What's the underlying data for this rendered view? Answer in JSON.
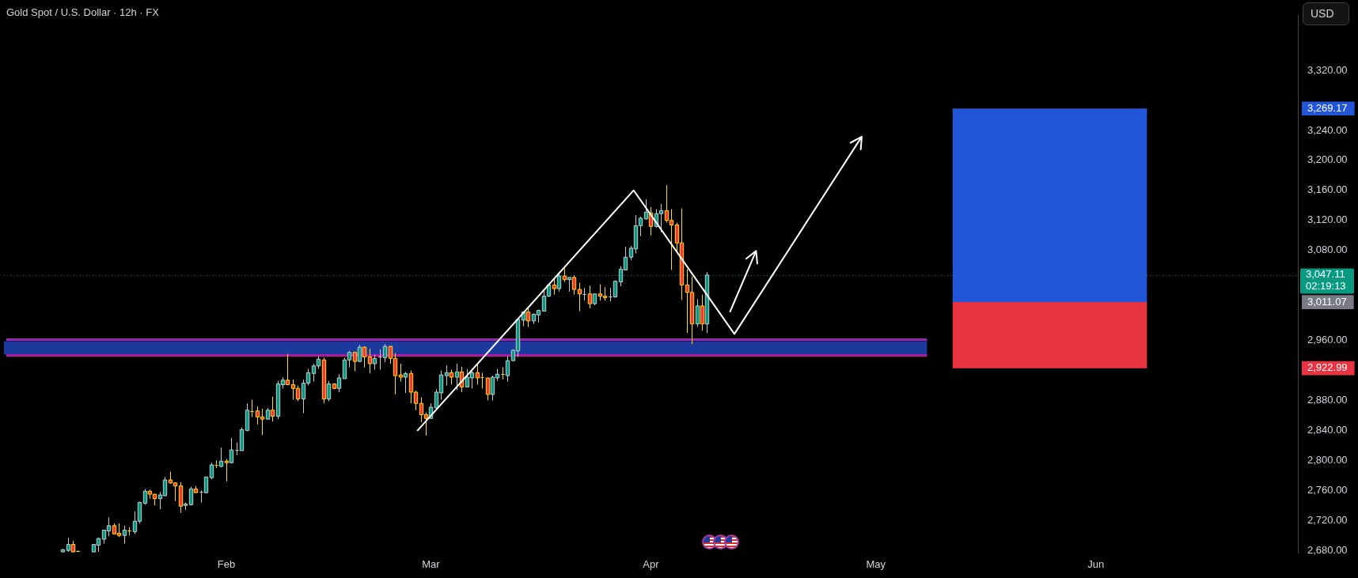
{
  "chart_data": {
    "type": "candlestick",
    "title": "Gold Spot / U.S. Dollar · 12h · FX",
    "ylabel": "USD",
    "categories": [
      null,
      null,
      null,
      null,
      null,
      null,
      null,
      null,
      null,
      null,
      null,
      null,
      null,
      null,
      null,
      null,
      null,
      null,
      null,
      null,
      null,
      null,
      null,
      null,
      null,
      null,
      null,
      null,
      null,
      null,
      null,
      null,
      null,
      null,
      null,
      null,
      null,
      null,
      null,
      null,
      null,
      null,
      null,
      "Feb",
      null,
      null,
      null,
      null,
      null,
      null,
      null,
      null,
      null,
      null,
      null,
      null,
      null,
      null,
      null,
      null,
      null,
      null,
      null,
      null,
      null,
      null,
      null,
      null,
      null,
      null,
      null,
      null,
      null,
      null,
      null,
      null,
      null,
      null,
      null,
      null,
      null,
      null,
      null,
      "Mar",
      null,
      null,
      null,
      null,
      null,
      null,
      null,
      null,
      null,
      null,
      null,
      null,
      null,
      null,
      null,
      null,
      null,
      null,
      null,
      null,
      null,
      null,
      null,
      null,
      null,
      null,
      null,
      null,
      null,
      null,
      null,
      null,
      null,
      null,
      null,
      null,
      null,
      null,
      null,
      null,
      null,
      null,
      "Apr",
      null,
      null,
      null,
      null,
      null,
      null,
      null,
      null,
      null,
      null,
      null,
      null,
      null,
      null,
      null,
      null,
      null,
      null,
      null,
      null,
      null,
      null,
      null,
      null,
      null,
      null,
      null,
      null,
      null,
      null,
      null,
      null,
      null,
      null,
      null,
      null,
      null,
      null,
      null,
      null,
      null,
      null,
      null,
      "May",
      null,
      null,
      null,
      null,
      null,
      null,
      null,
      null,
      null,
      null,
      null,
      null,
      null,
      null,
      null,
      null,
      null,
      null,
      null,
      null,
      null,
      null,
      null,
      null,
      null,
      null,
      null,
      null,
      null,
      null,
      null,
      null,
      null,
      null,
      null,
      null,
      null,
      null,
      null,
      null,
      null,
      null,
      "Jun",
      null,
      null,
      null,
      null,
      null,
      null,
      null,
      null,
      null,
      null,
      null,
      null,
      null,
      null,
      null,
      null,
      null,
      null,
      null,
      null,
      null,
      null,
      null,
      null,
      null,
      null,
      null,
      null,
      null,
      null,
      null,
      null,
      null,
      null,
      null,
      null,
      null,
      null,
      null
    ],
    "ylim": [
      2677,
      3393
    ],
    "yticks": [
      {
        "value": 2680,
        "label": "2,680.00"
      },
      {
        "value": 2720,
        "label": "2,720.00"
      },
      {
        "value": 2760,
        "label": "2,760.00"
      },
      {
        "value": 2800,
        "label": "2,800.00"
      },
      {
        "value": 2840,
        "label": "2,840.00"
      },
      {
        "value": 2880,
        "label": "2,880.00"
      },
      {
        "value": 2922.99,
        "label": "2,922.99"
      },
      {
        "value": 2960,
        "label": "2,960.00"
      },
      {
        "value": 3011.07,
        "label": "3,011.07"
      },
      {
        "value": 3080,
        "label": "3,080.00"
      },
      {
        "value": 3120,
        "label": "3,120.00"
      },
      {
        "value": 3160,
        "label": "3,160.00"
      },
      {
        "value": 3200,
        "label": "3,200.00"
      },
      {
        "value": 3240,
        "label": "3,240.00"
      },
      {
        "value": 3269.17,
        "label": "3,269.17"
      },
      {
        "value": 3320,
        "label": "3,320.00"
      }
    ],
    "grid": false,
    "bands": [
      {
        "axis": "y",
        "from": 2941,
        "to": 2959,
        "color": "#1c3a9c"
      },
      {
        "axis": "y",
        "from": 3011.07,
        "to": 3269.17,
        "color": "#2255d8"
      },
      {
        "axis": "y",
        "from": 2922.99,
        "to": 3011.07,
        "color": "#e83442"
      }
    ],
    "series": [
      {
        "type": "line",
        "color": "#9c27b0",
        "values": [
          2961,
          2961,
          2961,
          2961,
          2961,
          2961,
          2961,
          2961,
          2961,
          2961,
          2961,
          2961,
          2961,
          2961,
          2961,
          2961,
          2961,
          2961,
          2961,
          2961,
          2961,
          2961,
          2961,
          2961,
          2961,
          2961,
          2961,
          2961,
          2961,
          2961,
          2961,
          2961,
          2961,
          2961,
          2961,
          2961,
          2961,
          2961,
          2961,
          2961,
          2961,
          2961,
          2961,
          2961,
          2961,
          2961,
          2961,
          2961,
          2961,
          2961,
          2961,
          2961,
          2961,
          2961,
          2961,
          2961,
          2961,
          2961,
          2961,
          2961,
          2961,
          2961,
          2961,
          2961,
          2961,
          2961,
          2961,
          2961,
          2961,
          2961,
          2961,
          2961,
          2961,
          2961,
          2961,
          2961,
          2961,
          2961,
          2961,
          2961,
          2961,
          2961,
          2961,
          2961,
          2961,
          2961,
          2961,
          2961,
          2961,
          2961,
          2961,
          2961,
          2961,
          2961,
          2961,
          2961,
          2961,
          2961,
          2961,
          2961,
          2961,
          2961,
          2961,
          2961,
          2961,
          2961,
          2961,
          2961,
          2961,
          2961,
          2961,
          2961,
          2961,
          2961,
          2961,
          2961,
          2961,
          2961,
          2961,
          2961,
          2961,
          2961,
          2961,
          2961,
          2961,
          2961,
          2961,
          2961,
          2961,
          2961,
          2961,
          2961,
          2961,
          2961,
          2961,
          2961,
          2961,
          2961,
          2961,
          2961,
          2961,
          2961,
          2961,
          2961,
          2961,
          2961,
          2961,
          2961,
          2961,
          2961,
          2961,
          2961,
          2961,
          2961,
          2961,
          2961,
          2961,
          2961,
          2961,
          2961,
          2961,
          2961,
          2961,
          2961,
          2961,
          2961,
          2961,
          2961,
          2961,
          2961,
          2961,
          2961,
          2961,
          2961,
          2961,
          2961,
          2961,
          2961,
          2961,
          2961,
          2961,
          null,
          null,
          null,
          null,
          null,
          null,
          null,
          null,
          null,
          null,
          null,
          null,
          null,
          null,
          null,
          null,
          null,
          null,
          null,
          null,
          null,
          null,
          null,
          null,
          null,
          null,
          null,
          null,
          null,
          null,
          null,
          null,
          null,
          null,
          null,
          null,
          null,
          null,
          null,
          null,
          null,
          null,
          null,
          null,
          null,
          null,
          null,
          null,
          null,
          null,
          null,
          null,
          null,
          null,
          null,
          null,
          null,
          null,
          null,
          null,
          null,
          null,
          null,
          null,
          null,
          null,
          null,
          null,
          null,
          null,
          null,
          null
        ]
      },
      {
        "type": "line",
        "color": "#b5179e",
        "values": [
          2940,
          2940,
          2940,
          2940,
          2940,
          2940,
          2940,
          2940,
          2940,
          2940,
          2940,
          2940,
          2940,
          2940,
          2940,
          2940,
          2940,
          2940,
          2940,
          2940,
          2940,
          2940,
          2940,
          2940,
          2940,
          2940,
          2940,
          2940,
          2940,
          2940,
          2940,
          2940,
          2940,
          2940,
          2940,
          2940,
          2940,
          2940,
          2940,
          2940,
          2940,
          2940,
          2940,
          2940,
          2940,
          2940,
          2940,
          2940,
          2940,
          2940,
          2940,
          2940,
          2940,
          2940,
          2940,
          2940,
          2940,
          2940,
          2940,
          2940,
          2940,
          2940,
          2940,
          2940,
          2940,
          2940,
          2940,
          2940,
          2940,
          2940,
          2940,
          2940,
          2940,
          2940,
          2940,
          2940,
          2940,
          2940,
          2940,
          2940,
          2940,
          2940,
          2940,
          2940,
          2940,
          2940,
          2940,
          2940,
          2940,
          2940,
          2940,
          2940,
          2940,
          2940,
          2940,
          2940,
          2940,
          2940,
          2940,
          2940,
          2940,
          2940,
          2940,
          2940,
          2940,
          2940,
          2940,
          2940,
          2940,
          2940,
          2940,
          2940,
          2940,
          2940,
          2940,
          2940,
          2940,
          2940,
          2940,
          2940,
          2940,
          2940,
          2940,
          2940,
          2940,
          2940,
          2940,
          2940,
          2940,
          2940,
          2940,
          2940,
          2940,
          2940,
          2940,
          2940,
          2940,
          2940,
          2940,
          2940,
          2940,
          2940,
          2940,
          2940,
          2940,
          2940,
          2940,
          2940,
          2940,
          2940,
          2940,
          2940,
          2940,
          2940,
          2940,
          2940,
          2940,
          2940,
          2940,
          2940,
          2940,
          2940,
          2940,
          2940,
          2940,
          2940,
          2940,
          2940,
          2940,
          2940,
          2940,
          2940,
          2940,
          2940,
          2940,
          2940,
          2940,
          2940,
          2940,
          2940,
          2940,
          null,
          null,
          null,
          null,
          null,
          null,
          null,
          null,
          null,
          null,
          null,
          null,
          null,
          null,
          null,
          null,
          null,
          null,
          null,
          null,
          null,
          null,
          null,
          null,
          null,
          null,
          null,
          null,
          null,
          null,
          null,
          null,
          null,
          null,
          null,
          null,
          null,
          null,
          null,
          null,
          null,
          null,
          null,
          null,
          null,
          null,
          null,
          null,
          null,
          null,
          null,
          null,
          null,
          null,
          null,
          null,
          null,
          null,
          null,
          null,
          null,
          null,
          null,
          null,
          null,
          null,
          null,
          null,
          null,
          null,
          null,
          null
        ]
      },
      {
        "ohlc": [
          null,
          null,
          null,
          null,
          null,
          null,
          null,
          null,
          null,
          null,
          null,
          [
            2678,
            2682,
            2678,
            2681
          ],
          [
            2680,
            2697,
            2678,
            2688
          ],
          [
            2688,
            2693,
            2678,
            2678
          ],
          [
            2679,
            2680,
            2678,
            2678
          ],
          null,
          null,
          [
            2678,
            2688,
            2678,
            2688
          ],
          [
            2687,
            2697,
            2678,
            2696
          ],
          [
            2695,
            2707,
            2689,
            2707
          ],
          [
            2706,
            2724,
            2699,
            2713
          ],
          [
            2713,
            2716,
            2702,
            2702
          ],
          [
            2703,
            2716,
            2698,
            2700
          ],
          [
            2700,
            2713,
            2689,
            2707
          ],
          [
            2707,
            2711,
            2700,
            2706
          ],
          [
            2705,
            2732,
            2702,
            2719
          ],
          [
            2719,
            2745,
            2716,
            2744
          ],
          [
            2743,
            2762,
            2741,
            2759
          ],
          [
            2759,
            2761,
            2749,
            2755
          ],
          [
            2755,
            2755,
            2740,
            2749
          ],
          [
            2749,
            2758,
            2735,
            2754
          ],
          [
            2753,
            2778,
            2752,
            2774
          ],
          [
            2774,
            2785,
            2769,
            2770
          ],
          [
            2770,
            2771,
            2746,
            2766
          ],
          [
            2766,
            2771,
            2730,
            2739
          ],
          [
            2740,
            2744,
            2734,
            2742
          ],
          [
            2741,
            2765,
            2740,
            2762
          ],
          [
            2762,
            2766,
            2757,
            2757
          ],
          [
            2757,
            2760,
            2744,
            2758
          ],
          [
            2757,
            2778,
            2756,
            2778
          ],
          [
            2777,
            2797,
            2775,
            2794
          ],
          [
            2794,
            2800,
            2790,
            2793
          ],
          [
            2792,
            2817,
            2791,
            2799
          ],
          [
            2799,
            2802,
            2772,
            2797
          ],
          [
            2797,
            2830,
            2796,
            2814
          ],
          [
            2814,
            2824,
            2807,
            2814
          ],
          [
            2813,
            2844,
            2813,
            2841
          ],
          [
            2840,
            2876,
            2839,
            2867
          ],
          [
            2866,
            2881,
            2858,
            2865
          ],
          [
            2866,
            2872,
            2848,
            2858
          ],
          [
            2858,
            2869,
            2834,
            2855
          ],
          [
            2855,
            2870,
            2855,
            2867
          ],
          [
            2867,
            2885,
            2852,
            2859
          ],
          [
            2859,
            2906,
            2855,
            2902
          ],
          [
            2901,
            2911,
            2896,
            2907
          ],
          [
            2907,
            2942,
            2901,
            2901
          ],
          [
            2901,
            2908,
            2881,
            2896
          ],
          [
            2896,
            2900,
            2879,
            2882
          ],
          [
            2882,
            2908,
            2863,
            2903
          ],
          [
            2903,
            2922,
            2900,
            2917
          ],
          [
            2916,
            2929,
            2905,
            2926
          ],
          [
            2926,
            2939,
            2922,
            2935
          ],
          [
            2934,
            2937,
            2876,
            2882
          ],
          [
            2882,
            2906,
            2879,
            2902
          ],
          [
            2902,
            2903,
            2895,
            2896
          ],
          [
            2896,
            2915,
            2891,
            2910
          ],
          [
            2909,
            2937,
            2909,
            2934
          ],
          [
            2934,
            2946,
            2924,
            2944
          ],
          [
            2944,
            2945,
            2919,
            2932
          ],
          [
            2932,
            2954,
            2931,
            2951
          ],
          [
            2951,
            2952,
            2924,
            2938
          ],
          [
            2938,
            2949,
            2916,
            2929
          ],
          [
            2929,
            2941,
            2921,
            2936
          ],
          [
            2937,
            2948,
            2921,
            2938
          ],
          [
            2937,
            2955,
            2931,
            2952
          ],
          [
            2952,
            2953,
            2929,
            2936
          ],
          [
            2936,
            2943,
            2888,
            2913
          ],
          [
            2914,
            2929,
            2905,
            2911
          ],
          [
            2911,
            2918,
            2890,
            2916
          ],
          [
            2916,
            2920,
            2876,
            2891
          ],
          [
            2891,
            2893,
            2867,
            2876
          ],
          [
            2876,
            2884,
            2851,
            2861
          ],
          [
            2861,
            2864,
            2833,
            2856
          ],
          [
            2856,
            2876,
            2856,
            2871
          ],
          [
            2870,
            2895,
            2868,
            2891
          ],
          [
            2890,
            2920,
            2881,
            2914
          ],
          [
            2913,
            2927,
            2900,
            2917
          ],
          [
            2917,
            2921,
            2901,
            2911
          ],
          [
            2911,
            2929,
            2894,
            2918
          ],
          [
            2918,
            2925,
            2891,
            2898
          ],
          [
            2898,
            2922,
            2898,
            2911
          ],
          [
            2910,
            2922,
            2896,
            2917
          ],
          [
            2917,
            2929,
            2901,
            2910
          ],
          [
            2911,
            2917,
            2896,
            2910
          ],
          [
            2910,
            2910,
            2880,
            2888
          ],
          [
            2888,
            2913,
            2880,
            2911
          ],
          [
            2910,
            2922,
            2906,
            2915
          ],
          [
            2915,
            2924,
            2908,
            2914
          ],
          [
            2913,
            2939,
            2905,
            2933
          ],
          [
            2933,
            2948,
            2933,
            2947
          ],
          [
            2946,
            2989,
            2938,
            2988
          ],
          [
            2987,
            2999,
            2979,
            2998
          ],
          [
            2998,
            3004,
            2978,
            2986
          ],
          [
            2986,
            2996,
            2982,
            2995
          ],
          [
            2994,
            3001,
            2984,
            3000
          ],
          [
            2999,
            3028,
            2999,
            3019
          ],
          [
            3019,
            3036,
            3018,
            3034
          ],
          [
            3034,
            3044,
            3021,
            3029
          ],
          [
            3029,
            3051,
            3025,
            3046
          ],
          [
            3046,
            3056,
            3038,
            3041
          ],
          [
            3041,
            3044,
            3025,
            3044
          ],
          [
            3044,
            3047,
            3021,
            3028
          ],
          [
            3028,
            3037,
            2999,
            3022
          ],
          [
            3022,
            3030,
            3013,
            3022
          ],
          [
            3022,
            3033,
            3003,
            3009
          ],
          [
            3009,
            3022,
            3007,
            3022
          ],
          [
            3022,
            3035,
            3013,
            3019
          ],
          [
            3019,
            3031,
            3013,
            3017
          ],
          [
            3019,
            3030,
            3012,
            3019
          ],
          [
            3018,
            3040,
            3017,
            3039
          ],
          [
            3038,
            3059,
            3032,
            3055
          ],
          [
            3054,
            3085,
            3054,
            3071
          ],
          [
            3071,
            3086,
            3067,
            3083
          ],
          [
            3082,
            3127,
            3076,
            3113
          ],
          [
            3113,
            3125,
            3099,
            3123
          ],
          [
            3122,
            3148,
            3121,
            3131
          ],
          [
            3130,
            3138,
            3100,
            3112
          ],
          [
            3112,
            3135,
            3110,
            3129
          ],
          [
            3129,
            3142,
            3104,
            3133
          ],
          [
            3133,
            3167,
            3117,
            3120
          ],
          [
            3120,
            3135,
            3054,
            3114
          ],
          [
            3114,
            3117,
            3078,
            3090
          ],
          [
            3090,
            3136,
            3014,
            3034
          ],
          [
            3034,
            3055,
            2970,
            3024
          ],
          [
            3024,
            3045,
            2955,
            2982
          ],
          [
            2982,
            3015,
            2978,
            3006
          ],
          [
            3006,
            3021,
            2973,
            2982
          ],
          [
            2982,
            3051,
            2970,
            3047.11
          ],
          null,
          null,
          null,
          null,
          null,
          null,
          null,
          null,
          null,
          null,
          null,
          null,
          null,
          null,
          null,
          null,
          null,
          null,
          null,
          null,
          null,
          null,
          null,
          null,
          null,
          null,
          null,
          null,
          null,
          null,
          null,
          null,
          null,
          null,
          null,
          null,
          null,
          null,
          null,
          null,
          null,
          null,
          null,
          null,
          null,
          null,
          null,
          null,
          null,
          null,
          null,
          null,
          null,
          null,
          null,
          null,
          null,
          null,
          null,
          null,
          null,
          null,
          null,
          null,
          null,
          null,
          null,
          null,
          null,
          null,
          null,
          null,
          null,
          null,
          null,
          null,
          null,
          null,
          null,
          null,
          null,
          null,
          null,
          null,
          null,
          null,
          null,
          null,
          null,
          null,
          null,
          null,
          null,
          null,
          null,
          null,
          null,
          null,
          null,
          null,
          null,
          null,
          null,
          null,
          null,
          null,
          null,
          null,
          null,
          null,
          null,
          null,
          null,
          null,
          null
        ],
        "colors": [
          null,
          null,
          null,
          null,
          null,
          null,
          null,
          null,
          null,
          null,
          null,
          "#089981",
          "#089981",
          "#f23645",
          "#ffe000",
          null,
          null,
          "#089981",
          "#089981",
          "#089981",
          "#089981",
          "#f23645",
          "#f23645",
          "#089981",
          "#ffe000",
          "#089981",
          "#089981",
          "#089981",
          "#f23645",
          "#f23645",
          "#089981",
          "#089981",
          "#f23645",
          "#f23645",
          "#f23645",
          "#089981",
          "#089981",
          "#f23645",
          "#c8cad2",
          "#089981",
          "#089981",
          "#ffe000",
          "#089981",
          "#f23645",
          "#089981",
          "#c8cad2",
          "#089981",
          "#089981",
          "#ffe000",
          "#f23645",
          "#f23645",
          "#089981",
          "#f23645",
          "#089981",
          "#089981",
          "#f23645",
          "#f23645",
          "#f23645",
          "#089981",
          "#089981",
          "#089981",
          "#089981",
          "#f23645",
          "#089981",
          "#f23645",
          "#089981",
          "#089981",
          "#089981",
          "#f23645",
          "#089981",
          "#f23645",
          "#f23645",
          "#089981",
          "#c8cad2",
          "#089981",
          "#f23645",
          "#f23645",
          "#f23645",
          "#089981",
          "#f23645",
          "#f23645",
          "#f23645",
          "#f23645",
          "#089981",
          "#089981",
          "#089981",
          "#089981",
          "#f23645",
          "#089981",
          "#f23645",
          "#089981",
          "#089981",
          "#f23645",
          "#ffe000",
          "#f23645",
          "#089981",
          "#089981",
          "#ffe000",
          "#089981",
          "#089981",
          "#089981",
          "#089981",
          "#f23645",
          "#089981",
          "#089981",
          "#089981",
          "#089981",
          "#f23645",
          "#089981",
          "#f23645",
          "#089981",
          "#f23645",
          "#f23645",
          "#c8cad2",
          "#f23645",
          "#089981",
          "#f23645",
          "#f23645",
          "#c8cad2",
          "#089981",
          "#089981",
          "#089981",
          "#089981",
          "#089981",
          "#089981",
          "#089981",
          "#f23645",
          "#089981",
          "#089981",
          "#f23645",
          "#f23645",
          "#f23645",
          "#f23645",
          "#f23645",
          "#f23645",
          "#089981",
          "#f23645",
          "#089981",
          null,
          null,
          null,
          null,
          null,
          null,
          null,
          null,
          null,
          null,
          null,
          null,
          null,
          null,
          null,
          null,
          null,
          null,
          null,
          null,
          null,
          null,
          null,
          null,
          null,
          null,
          null,
          null,
          null,
          null,
          null,
          null,
          null,
          null,
          null,
          null,
          null,
          null,
          null,
          null,
          null,
          null,
          null,
          null,
          null,
          null,
          null,
          null,
          null,
          null,
          null,
          null,
          null,
          null,
          null,
          null,
          null,
          null,
          null,
          null,
          null,
          null,
          null,
          null,
          null,
          null,
          null,
          null,
          null,
          null,
          null,
          null,
          null,
          null,
          null,
          null,
          null,
          null,
          null,
          null,
          null,
          null,
          null,
          null,
          null,
          null,
          null,
          null,
          null,
          null,
          null,
          null,
          null,
          null,
          null,
          null,
          null,
          null,
          null,
          null,
          null,
          null,
          null,
          null,
          null,
          null,
          null,
          null,
          null,
          null,
          null,
          null,
          null,
          null,
          null
        ]
      }
    ],
    "ref_lines": [
      {
        "axis": "y",
        "value": 3047.11,
        "label": "3,047.11\n02:19:13",
        "color": "#089981",
        "line_style": "dotted"
      }
    ]
  }
}
